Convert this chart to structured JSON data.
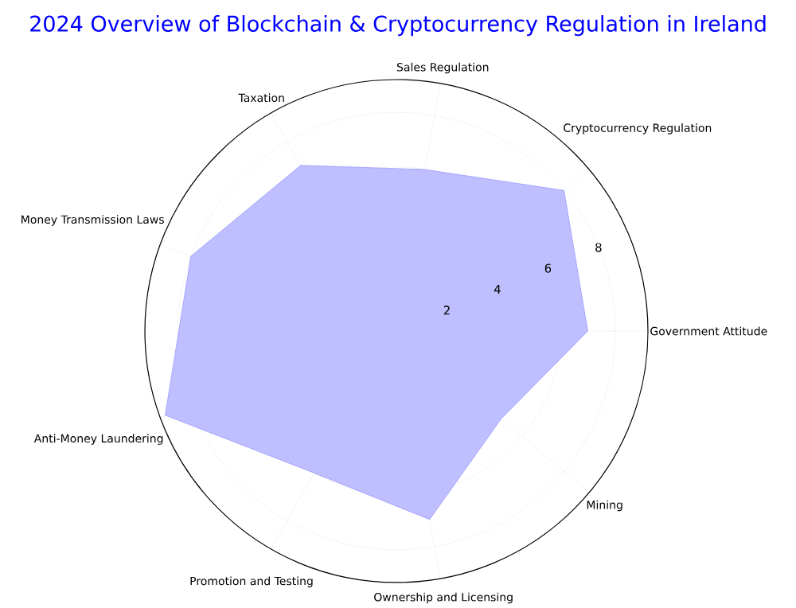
{
  "chart_data": {
    "type": "radar",
    "title": "2024 Overview of Blockchain & Cryptocurrency Regulation in Ireland",
    "categories": [
      "Sales Regulation",
      "Cryptocurrency Regulation",
      "Government Attitude",
      "Mining",
      "Ownership and Licensing",
      "Promotion and Testing",
      "Anti-Money Laundering",
      "Money Transmission Laws",
      "Taxation"
    ],
    "series": [
      {
        "color": "#bfbfff",
        "values": [
          6,
          8,
          7,
          5,
          7,
          6,
          9,
          8,
          7
        ]
      }
    ],
    "ylim": [
      0,
      9.2
    ],
    "yticks": [
      2,
      4,
      6,
      8
    ],
    "grid": true
  }
}
